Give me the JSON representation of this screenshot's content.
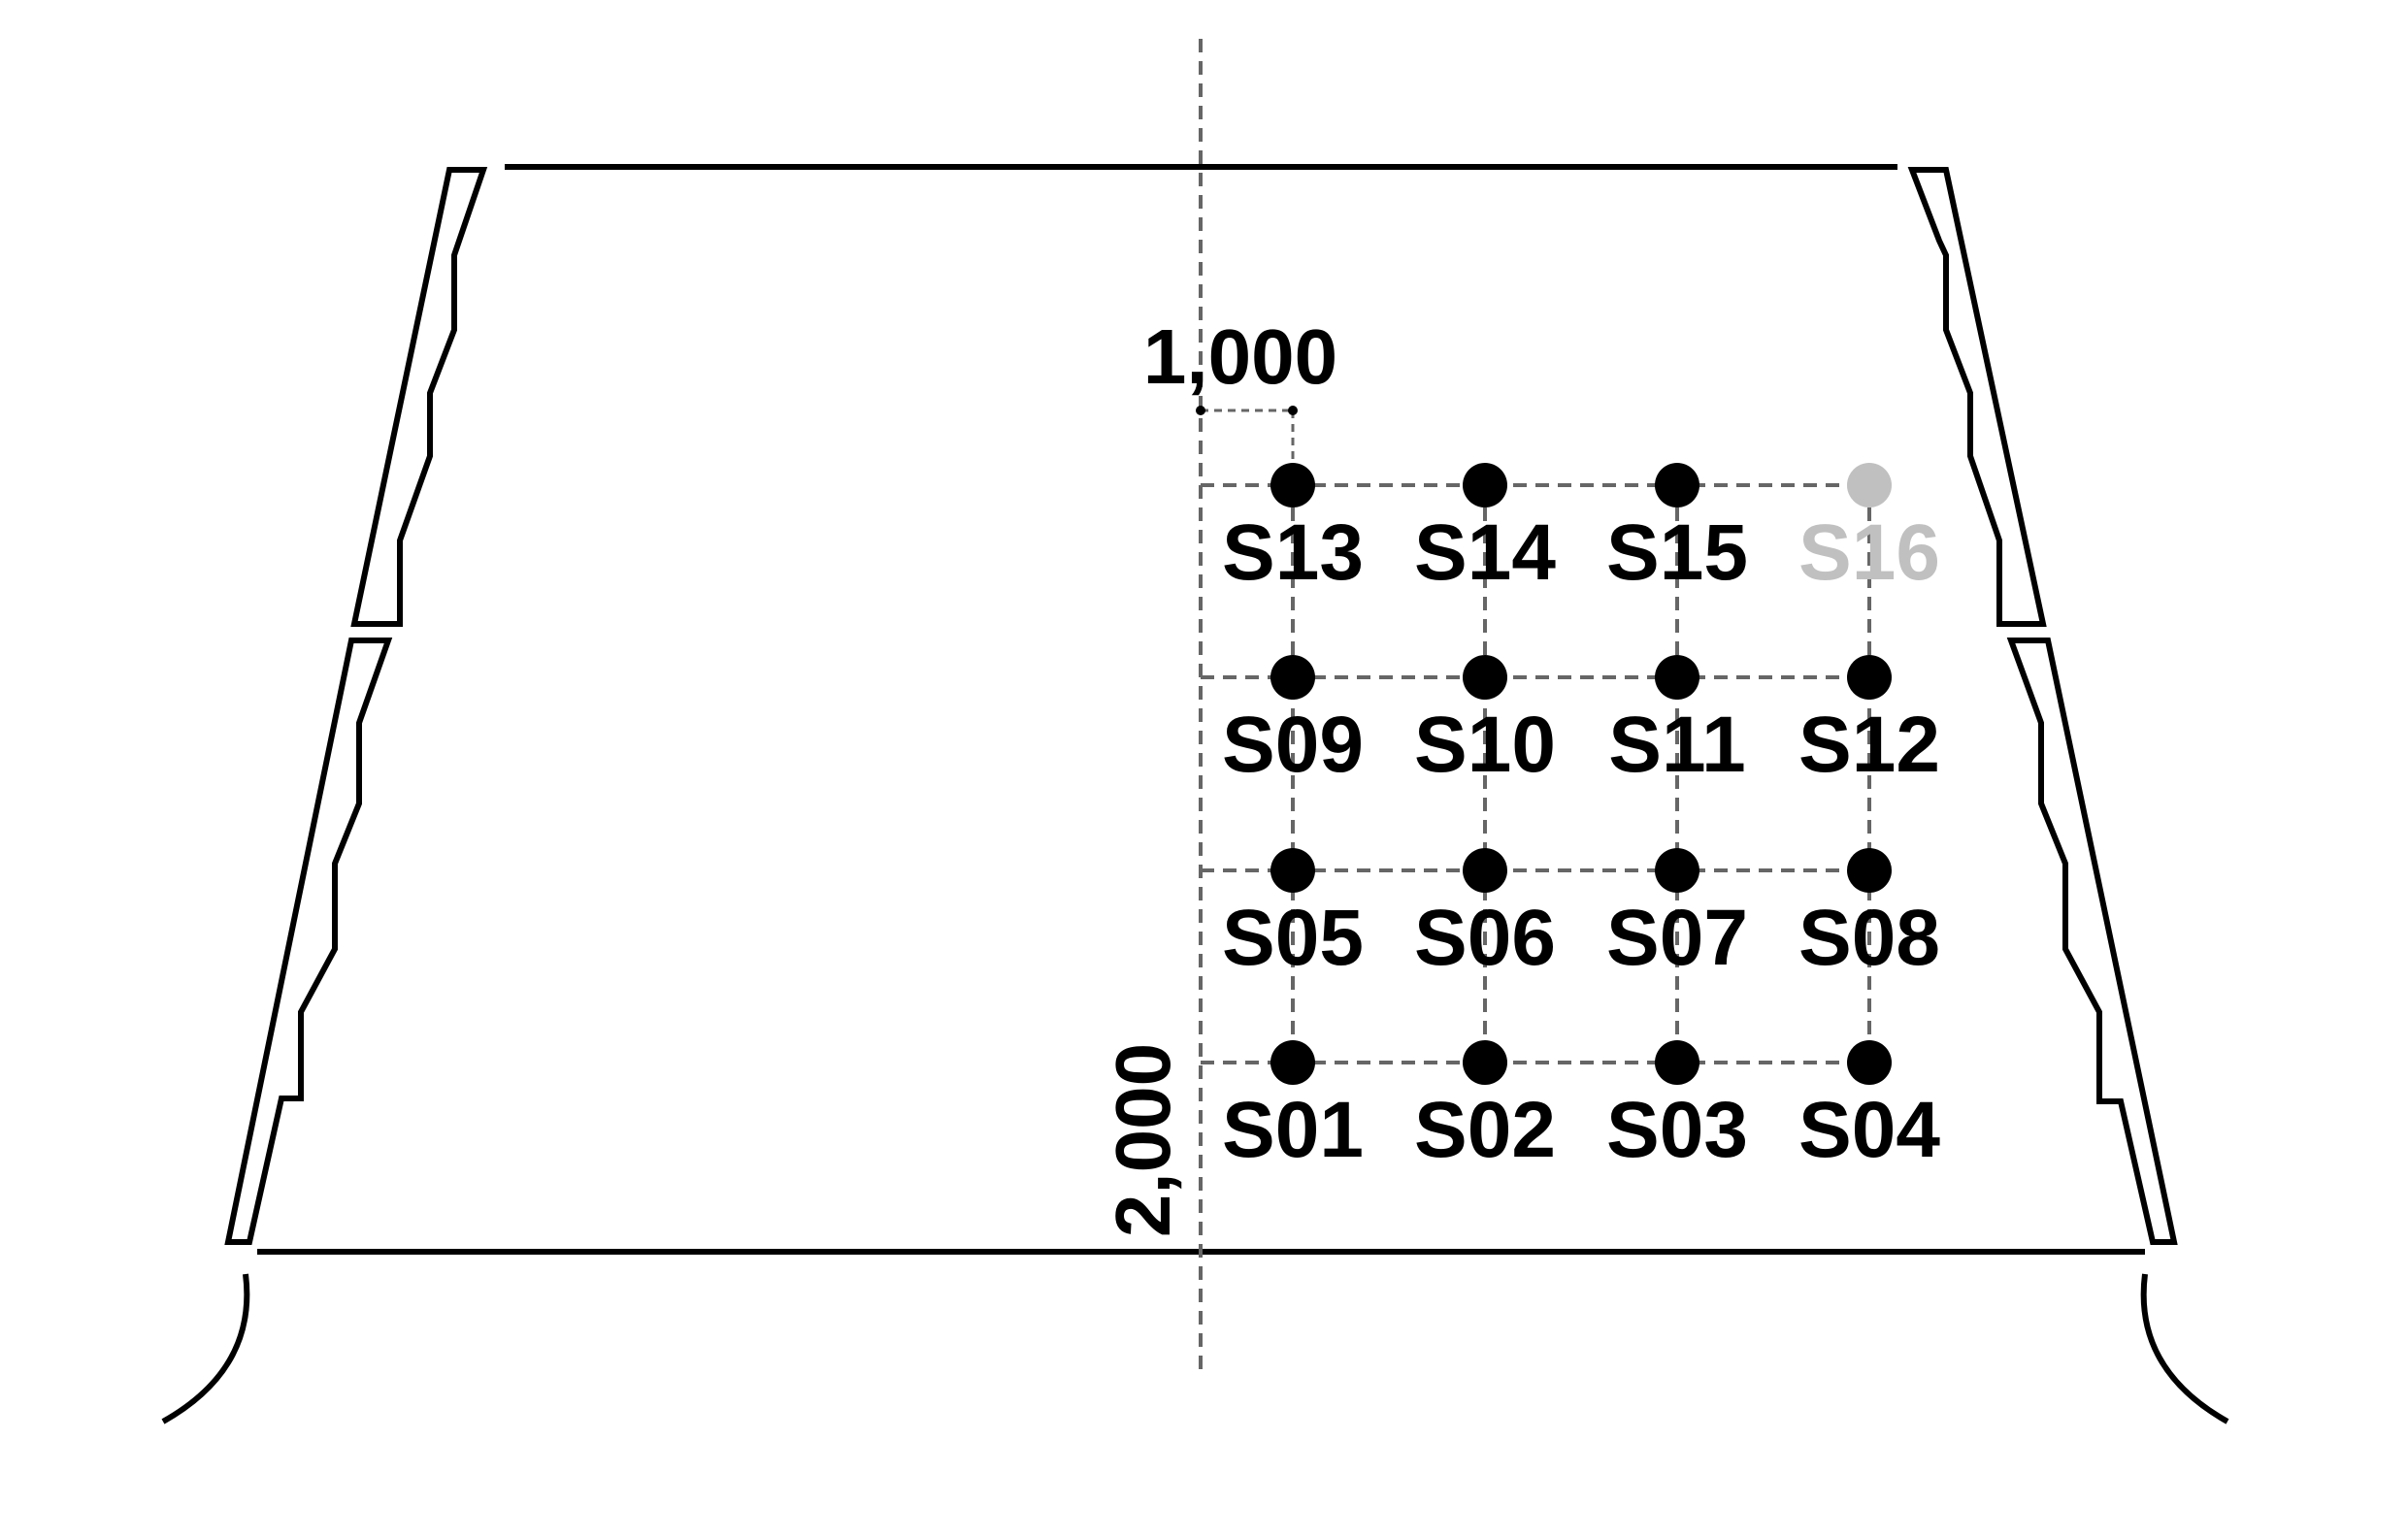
{
  "dimensions": {
    "horizontal": "1,000",
    "vertical": "2,000"
  },
  "sensors": [
    {
      "label": "S01",
      "row": 0,
      "col": 0,
      "active": true
    },
    {
      "label": "S02",
      "row": 0,
      "col": 1,
      "active": true
    },
    {
      "label": "S03",
      "row": 0,
      "col": 2,
      "active": true
    },
    {
      "label": "S04",
      "row": 0,
      "col": 3,
      "active": true
    },
    {
      "label": "S05",
      "row": 1,
      "col": 0,
      "active": true
    },
    {
      "label": "S06",
      "row": 1,
      "col": 1,
      "active": true
    },
    {
      "label": "S07",
      "row": 1,
      "col": 2,
      "active": true
    },
    {
      "label": "S08",
      "row": 1,
      "col": 3,
      "active": true
    },
    {
      "label": "S09",
      "row": 2,
      "col": 0,
      "active": true
    },
    {
      "label": "S10",
      "row": 2,
      "col": 1,
      "active": true
    },
    {
      "label": "S11",
      "row": 2,
      "col": 2,
      "active": true
    },
    {
      "label": "S12",
      "row": 2,
      "col": 3,
      "active": true
    },
    {
      "label": "S13",
      "row": 3,
      "col": 0,
      "active": true
    },
    {
      "label": "S14",
      "row": 3,
      "col": 1,
      "active": true
    },
    {
      "label": "S15",
      "row": 3,
      "col": 2,
      "active": true
    },
    {
      "label": "S16",
      "row": 3,
      "col": 3,
      "active": false
    }
  ],
  "colors": {
    "line": "#000000",
    "grid": "#666666",
    "active": "#000000",
    "inactive": "#c0c0c0"
  }
}
